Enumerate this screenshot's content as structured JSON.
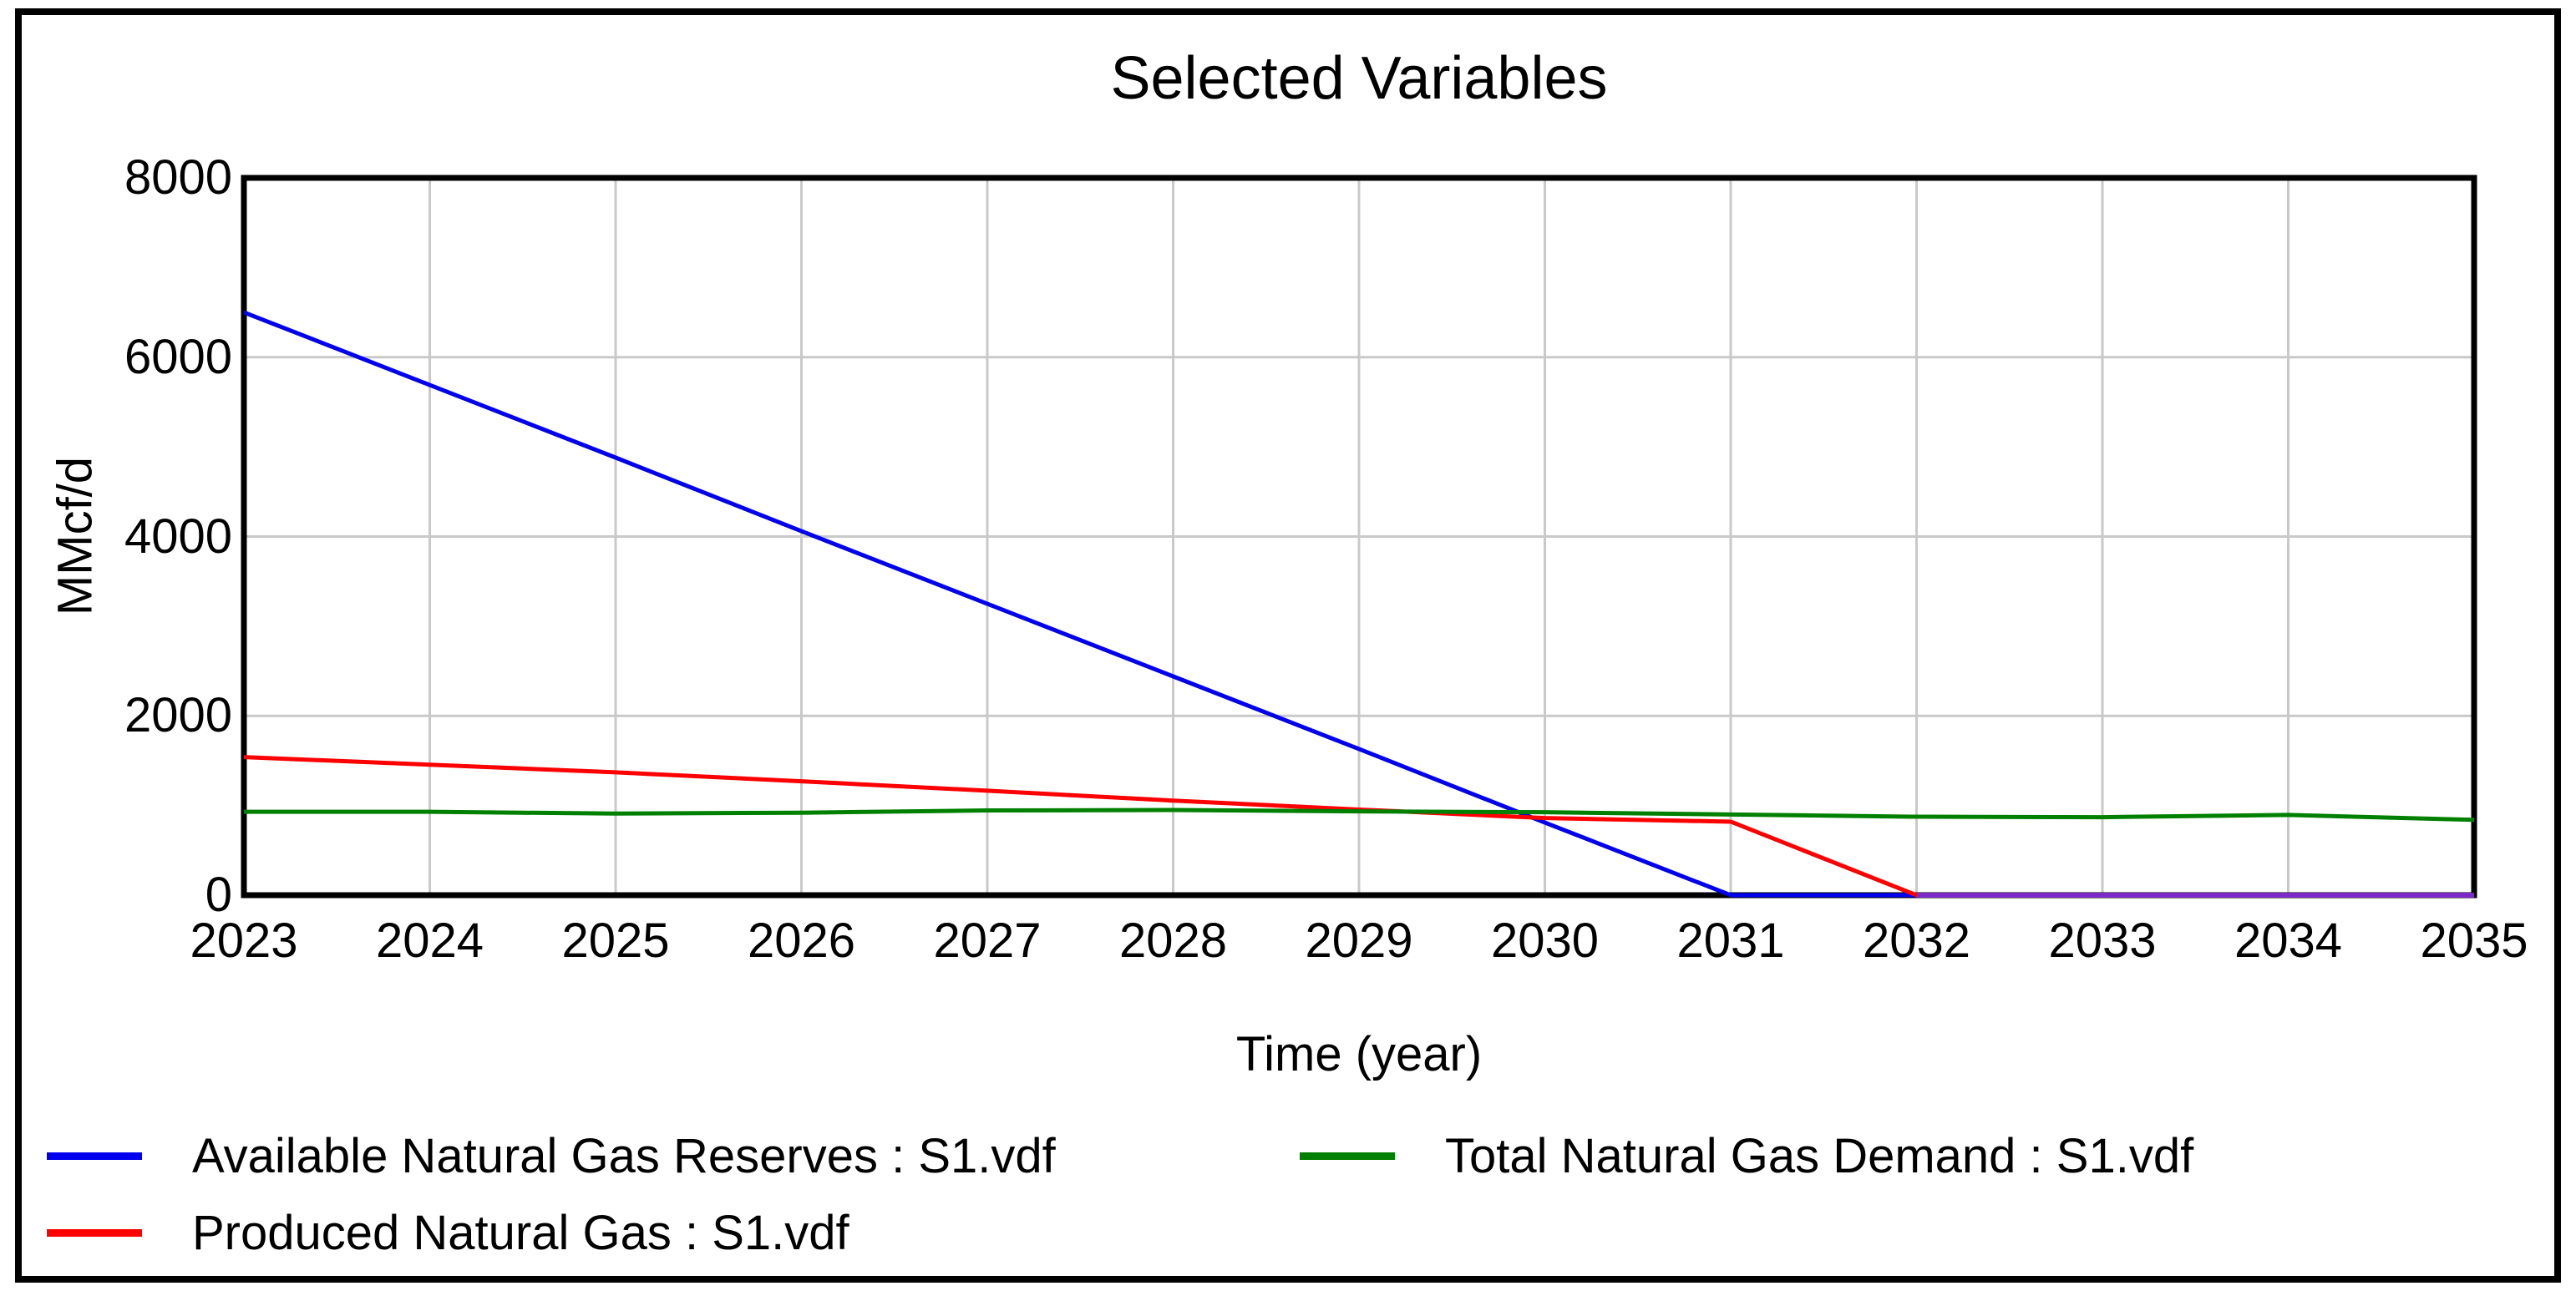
{
  "window": {
    "background": "#ffffff",
    "border_color": "#000000"
  },
  "chart_data": {
    "type": "line",
    "title": "Selected Variables",
    "xlabel": "Time (year)",
    "ylabel": "MMcf/d",
    "x": [
      2023,
      2024,
      2025,
      2026,
      2027,
      2028,
      2029,
      2030,
      2031,
      2032,
      2033,
      2034,
      2035
    ],
    "x_ticks": [
      2023,
      2024,
      2025,
      2026,
      2027,
      2028,
      2029,
      2030,
      2031,
      2032,
      2033,
      2034,
      2035
    ],
    "y_ticks": [
      8000,
      6000,
      4000,
      2000,
      0
    ],
    "xlim": [
      2023,
      2035
    ],
    "ylim": [
      0,
      8000
    ],
    "grid": true,
    "gridline_color": "#c9c9c9",
    "axis_frame_color": "#000000",
    "legend_position": "bottom",
    "series": [
      {
        "name": "Available Natural Gas Reserves : S1.vdf",
        "color": "#0000ee",
        "values": [
          6500,
          5690,
          4880,
          4060,
          3250,
          2440,
          1630,
          810,
          0,
          0,
          0,
          0,
          0
        ]
      },
      {
        "name": "Produced Natural Gas : S1.vdf",
        "color": "#ff0000",
        "values": [
          1540,
          1455,
          1370,
          1270,
          1165,
          1055,
          955,
          860,
          820,
          0,
          0,
          0,
          0
        ]
      },
      {
        "name": "Total Natural Gas Demand : S1.vdf",
        "color": "#008000",
        "values": [
          930,
          930,
          910,
          920,
          945,
          950,
          935,
          925,
          900,
          875,
          870,
          895,
          840
        ]
      }
    ],
    "overlap_segment": {
      "color": "#7b2ac8",
      "x_from": 2032,
      "x_to": 2035,
      "value": 0
    }
  }
}
